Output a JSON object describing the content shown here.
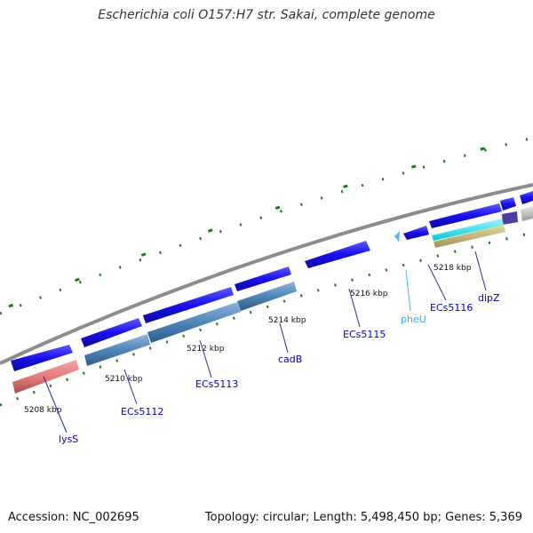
{
  "title": "Escherichia coli O157:H7 str. Sakai, complete genome",
  "footer": {
    "accession": "Accession: NC_002695",
    "summary": "Topology: circular; Length: 5,498,450 bp; Genes: 5,369"
  },
  "ticks": [
    {
      "label": "5208 kbp"
    },
    {
      "label": "5210 kbp"
    },
    {
      "label": "5212 kbp"
    },
    {
      "label": "5214 kbp"
    },
    {
      "label": "5216 kbp"
    },
    {
      "label": "5218 kbp"
    }
  ],
  "genes": [
    {
      "name": "lysS",
      "color": "#0000cc"
    },
    {
      "name": "ECs5112",
      "color": "#0000cc"
    },
    {
      "name": "ECs5113",
      "color": "#0000cc"
    },
    {
      "name": "cadB",
      "color": "#0000cc"
    },
    {
      "name": "ECs5115",
      "color": "#0000cc"
    },
    {
      "name": "pheU",
      "color": "#33aaff"
    },
    {
      "name": "ECs5116",
      "color": "#0000cc"
    },
    {
      "name": "dipZ",
      "color": "#0000cc"
    }
  ],
  "colors": {
    "cds": "#1a10f0",
    "blast_blue": "#4f86b8",
    "blast_red": "#e67c7c",
    "trna": "#44bbff",
    "cyan": "#00e5ee",
    "khaki": "#c8bf7a",
    "purple": "#4a3f9e",
    "gray": "#c4c4c4",
    "backbone": "#8c8c8c",
    "dots": "#1a7a1a"
  }
}
